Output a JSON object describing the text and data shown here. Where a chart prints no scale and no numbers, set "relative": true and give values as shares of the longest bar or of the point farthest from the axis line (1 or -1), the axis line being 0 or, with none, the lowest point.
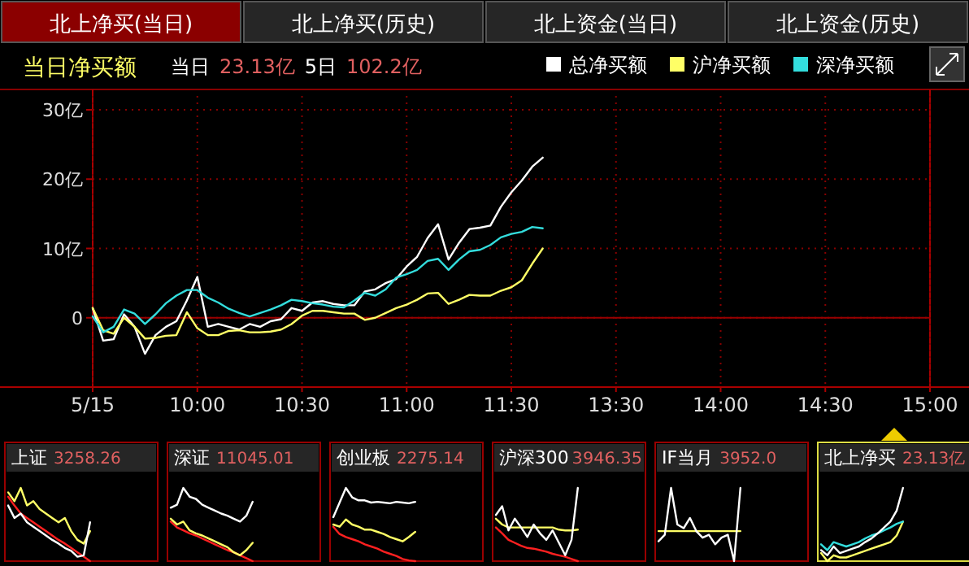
{
  "chart_data": [
    {
      "type": "line",
      "title": "当日净买额",
      "annotations": [
        "北上净买(当日)",
        "北上净买(历史)",
        "北上资金(当日)",
        "北上资金(历史)",
        "当日",
        "23.13亿",
        "5日",
        "102.2亿"
      ],
      "categories": [
        "5/15",
        null,
        null,
        null,
        null,
        null,
        null,
        null,
        null,
        null,
        "10:00",
        null,
        null,
        null,
        null,
        null,
        null,
        null,
        null,
        null,
        "10:30",
        null,
        null,
        null,
        null,
        null,
        null,
        null,
        null,
        null,
        "11:00",
        null,
        null,
        null,
        null,
        null,
        null,
        null,
        null,
        null,
        "11:30",
        null,
        null,
        null,
        null,
        null,
        null,
        null,
        null,
        null,
        "13:30",
        null,
        null,
        null,
        null,
        null,
        null,
        null,
        null,
        null,
        "14:00",
        null,
        null,
        null,
        null,
        null,
        null,
        null,
        null,
        null,
        "14:30",
        null,
        null,
        null,
        null,
        null,
        null,
        null,
        null,
        null,
        "15:00"
      ],
      "ylim": [
        -10,
        32
      ],
      "yticks": [
        0,
        {
          "value": 10,
          "label": "10亿"
        },
        {
          "value": 20,
          "label": "20亿"
        },
        {
          "value": 30,
          "label": "30亿"
        }
      ],
      "grid": true,
      "legend": "top right",
      "ref_lines": [
        {
          "axis": "y",
          "value": 0,
          "color": "#990000"
        }
      ],
      "series": [
        {
          "name": "总净买额",
          "color": "#ffffff",
          "values": [
            1.4,
            -3.3,
            -3.1,
            0.5,
            -1.3,
            -5.2,
            -2.5,
            -1.3,
            -0.5,
            2.5,
            5.9,
            -1.3,
            -0.9,
            -1.3,
            -1.7,
            -0.9,
            -1.3,
            -0.5,
            -0.2,
            1.4,
            1.0,
            2.2,
            2.4,
            2.0,
            1.8,
            1.8,
            3.8,
            4.1,
            5.0,
            5.6,
            7.4,
            8.8,
            11.5,
            13.5,
            8.4,
            10.8,
            12.8,
            13.0,
            13.3,
            16.0,
            18.1,
            19.8,
            21.8,
            23.1,
            null,
            null,
            null,
            null,
            null,
            null,
            null,
            null,
            null,
            null,
            null,
            null,
            null,
            null,
            null,
            null,
            null,
            null,
            null,
            null,
            null,
            null,
            null,
            null,
            null,
            null,
            null,
            null,
            null,
            null,
            null,
            null,
            null,
            null,
            null,
            null,
            null
          ]
        },
        {
          "name": "沪净买额",
          "color": "#ffff66",
          "values": [
            1.4,
            -1.8,
            -2.3,
            0,
            -1.3,
            -3.0,
            -2.9,
            -2.6,
            -2.5,
            0.8,
            -1.5,
            -2.5,
            -2.5,
            -1.9,
            -1.8,
            -2.1,
            -2.1,
            -2.0,
            -1.7,
            -0.9,
            0.3,
            1.0,
            1.0,
            0.8,
            0.6,
            0.6,
            -0.3,
            0,
            0.7,
            1.4,
            1.9,
            2.6,
            3.5,
            3.6,
            2.0,
            2.6,
            3.3,
            3.2,
            3.2,
            3.9,
            4.4,
            5.4,
            7.8,
            10.0,
            null,
            null,
            null,
            null,
            null,
            null,
            null,
            null,
            null,
            null,
            null,
            null,
            null,
            null,
            null,
            null,
            null,
            null,
            null,
            null,
            null,
            null,
            null,
            null,
            null,
            null,
            null,
            null,
            null,
            null,
            null,
            null,
            null,
            null,
            null,
            null,
            null
          ]
        },
        {
          "name": "深净买额",
          "color": "#33dddd",
          "values": [
            0.2,
            -2.1,
            -1.3,
            1.2,
            0.6,
            -0.9,
            0.5,
            2.1,
            3.2,
            4.0,
            4.0,
            2.9,
            2.2,
            1.3,
            0.7,
            0.2,
            0.7,
            1.2,
            1.8,
            2.6,
            2.4,
            2.1,
            1.9,
            1.6,
            1.5,
            2.5,
            3.6,
            3.2,
            4.1,
            5.8,
            6.3,
            6.9,
            8.2,
            8.5,
            6.9,
            8.4,
            9.6,
            9.8,
            10.5,
            11.6,
            12.1,
            12.4,
            13.1,
            12.9,
            null,
            null,
            null,
            null,
            null,
            null,
            null,
            null,
            null,
            null,
            null,
            null,
            null,
            null,
            null,
            null,
            null,
            null,
            null,
            null,
            null,
            null,
            null,
            null,
            null,
            null,
            null,
            null,
            null,
            null,
            null,
            null,
            null,
            null,
            null,
            null,
            null
          ]
        }
      ]
    },
    {
      "type": "line",
      "title": "上证",
      "subtitle": "3258.26",
      "relative": true,
      "categories": [
        null,
        null,
        null,
        null,
        null,
        null,
        null,
        null,
        null,
        null,
        null,
        null,
        null,
        null
      ],
      "series": [
        {
          "color": "#ff2020",
          "values": [
            0.88,
            0.76,
            0.65,
            0.59,
            0.53,
            0.47,
            0.41,
            0.35,
            0.29,
            0.24,
            0.18,
            0.12,
            0.06,
            0
          ]
        },
        {
          "color": "#ffff66",
          "values": [
            0.94,
            0.82,
            1,
            0.76,
            0.82,
            0.71,
            0.65,
            0.59,
            0.53,
            0.59,
            0.41,
            0.29,
            0.24,
            0.41
          ]
        },
        {
          "color": "#ffffff",
          "values": [
            0.76,
            0.59,
            0.65,
            0.53,
            0.47,
            0.41,
            0.35,
            0.29,
            0.24,
            0.18,
            0.14,
            0.06,
            0.08,
            0.53
          ]
        }
      ]
    },
    {
      "type": "line",
      "title": "深证",
      "subtitle": "11045.01",
      "relative": true,
      "categories": [
        null,
        null,
        null,
        null,
        null,
        null,
        null,
        null,
        null,
        null,
        null,
        null,
        null,
        null
      ],
      "series": [
        {
          "color": "#ff2020",
          "values": [
            0.54,
            0.46,
            0.42,
            0.38,
            0.35,
            0.31,
            0.27,
            0.23,
            0.19,
            0.15,
            0.12,
            0.08,
            0.04,
            0
          ]
        },
        {
          "color": "#ffff66",
          "values": [
            0.58,
            0.5,
            0.54,
            0.42,
            0.38,
            0.35,
            0.31,
            0.27,
            0.23,
            0.19,
            0.12,
            0.08,
            0.15,
            0.25
          ]
        },
        {
          "color": "#ffffff",
          "values": [
            0.73,
            0.77,
            1,
            0.88,
            0.85,
            0.77,
            0.73,
            0.69,
            0.65,
            0.62,
            0.58,
            0.54,
            0.62,
            0.81
          ]
        }
      ]
    },
    {
      "type": "line",
      "title": "创业板",
      "subtitle": "2275.14",
      "relative": true,
      "categories": [
        null,
        null,
        null,
        null,
        null,
        null,
        null,
        null,
        null,
        null,
        null,
        null,
        null,
        null
      ],
      "series": [
        {
          "color": "#ff2020",
          "values": [
            0.47,
            0.37,
            0.33,
            0.3,
            0.27,
            0.23,
            0.2,
            0.17,
            0.13,
            0.1,
            0.07,
            0.03,
            0.01,
            0
          ]
        },
        {
          "color": "#ffff66",
          "values": [
            0.5,
            0.47,
            0.57,
            0.5,
            0.47,
            0.43,
            0.43,
            0.4,
            0.37,
            0.33,
            0.3,
            0.27,
            0.33,
            0.4
          ]
        },
        {
          "color": "#ffffff",
          "values": [
            0.6,
            0.8,
            1,
            0.87,
            0.83,
            0.83,
            0.8,
            0.81,
            0.8,
            0.79,
            0.81,
            0.8,
            0.79,
            0.81
          ]
        }
      ]
    },
    {
      "type": "line",
      "title": "沪深300",
      "subtitle": "3946.35",
      "relative": true,
      "categories": [
        null,
        null,
        null,
        null,
        null,
        null,
        null,
        null,
        null,
        null,
        null,
        null,
        null,
        null
      ],
      "series": [
        {
          "color": "#ff2020",
          "values": [
            0.46,
            0.38,
            0.29,
            0.25,
            0.21,
            0.18,
            0.17,
            0.15,
            0.13,
            0.1,
            0.08,
            0.06,
            0.03,
            0
          ]
        },
        {
          "color": "#ffff66",
          "values": [
            0.58,
            0.5,
            0.46,
            0.46,
            0.46,
            0.46,
            0.46,
            0.46,
            0.46,
            0.46,
            0.43,
            0.42,
            0.42,
            0.43
          ]
        },
        {
          "color": "#ffffff",
          "values": [
            0.63,
            0.75,
            0.42,
            0.58,
            0.46,
            0.33,
            0.5,
            0.38,
            0.29,
            0.42,
            0.25,
            0.08,
            0.29,
            1
          ]
        }
      ]
    },
    {
      "type": "line",
      "title": "IF当月",
      "subtitle": "3952.0",
      "relative": true,
      "categories": [
        null,
        null,
        null,
        null,
        null,
        null,
        null,
        null,
        null,
        null,
        null,
        null,
        null,
        null
      ],
      "series": [
        {
          "color": "#ffff66",
          "values": [
            0.41,
            0.41,
            0.41,
            0.41,
            0.41,
            0.41,
            0.41,
            0.41,
            0.41,
            0.41,
            0.41,
            0.41,
            0.41,
            0.41
          ]
        },
        {
          "color": "#ffffff",
          "values": [
            0.27,
            0.36,
            1,
            0.5,
            0.45,
            0.59,
            0.41,
            0.32,
            0.36,
            0.23,
            0.32,
            0.36,
            0,
            1
          ]
        }
      ]
    },
    {
      "type": "line",
      "title": "北上净买",
      "subtitle": "23.13亿",
      "relative": true,
      "categories": [
        null,
        null,
        null,
        null,
        null,
        null,
        null,
        null,
        null,
        null,
        null,
        null,
        null,
        null
      ],
      "series": [
        {
          "color": "#ffff66",
          "values": [
            0.11,
            0,
            0.08,
            0.05,
            0.05,
            0.08,
            0.11,
            0.14,
            0.17,
            0.2,
            0.23,
            0.26,
            0.35,
            0.54
          ]
        },
        {
          "color": "#33dddd",
          "values": [
            0.23,
            0.15,
            0.26,
            0.23,
            0.2,
            0.23,
            0.26,
            0.31,
            0.35,
            0.38,
            0.42,
            0.46,
            0.51,
            0.54
          ]
        },
        {
          "color": "#ffffff",
          "values": [
            0.15,
            0.08,
            0.2,
            0.11,
            0.14,
            0.17,
            0.2,
            0.26,
            0.31,
            0.38,
            0.46,
            0.54,
            0.69,
            1
          ]
        }
      ]
    }
  ]
}
